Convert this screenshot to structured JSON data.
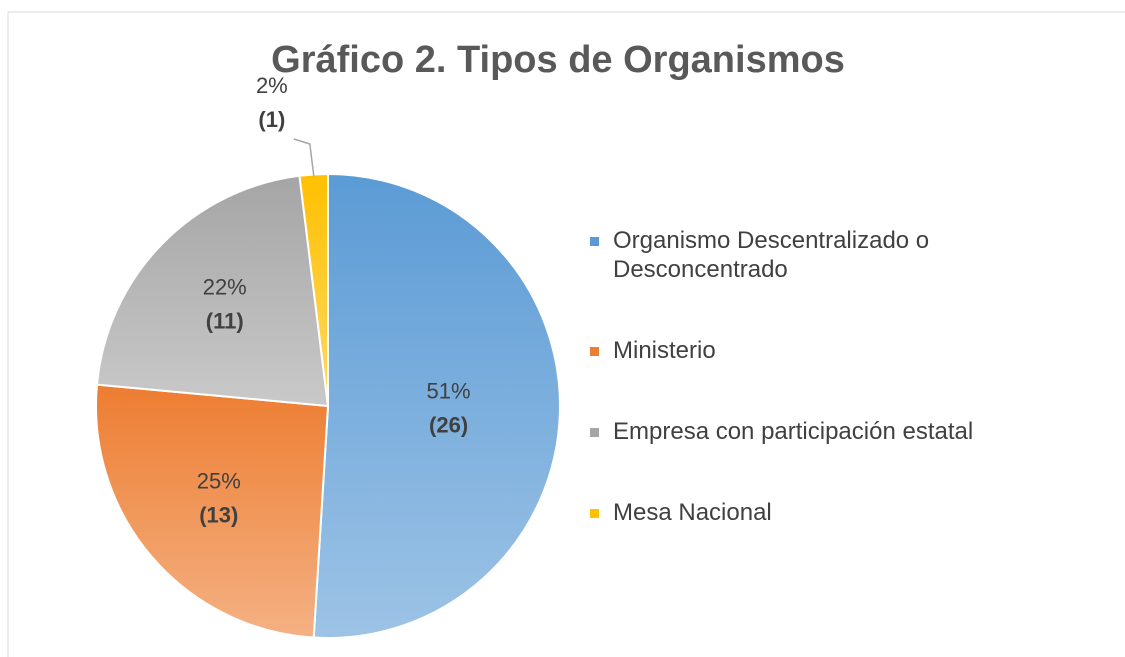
{
  "chart_data": {
    "type": "pie",
    "title": "Gráfico 2. Tipos de Organismos",
    "categories": [
      "Organismo Descentralizado o Desconcentrado",
      "Ministerio",
      "Empresa con participación estatal",
      "Mesa Nacional"
    ],
    "values": [
      26,
      13,
      11,
      1
    ],
    "value_labels": [
      "(26)",
      "(13)",
      "(11)",
      "(1)"
    ],
    "percentages": [
      51,
      25,
      22,
      2
    ],
    "percentage_labels": [
      "51%",
      "25%",
      "22%",
      "2%"
    ],
    "colors": [
      "#5b9bd5",
      "#ed7d31",
      "#a5a5a5",
      "#ffc000"
    ],
    "legend": "right"
  }
}
